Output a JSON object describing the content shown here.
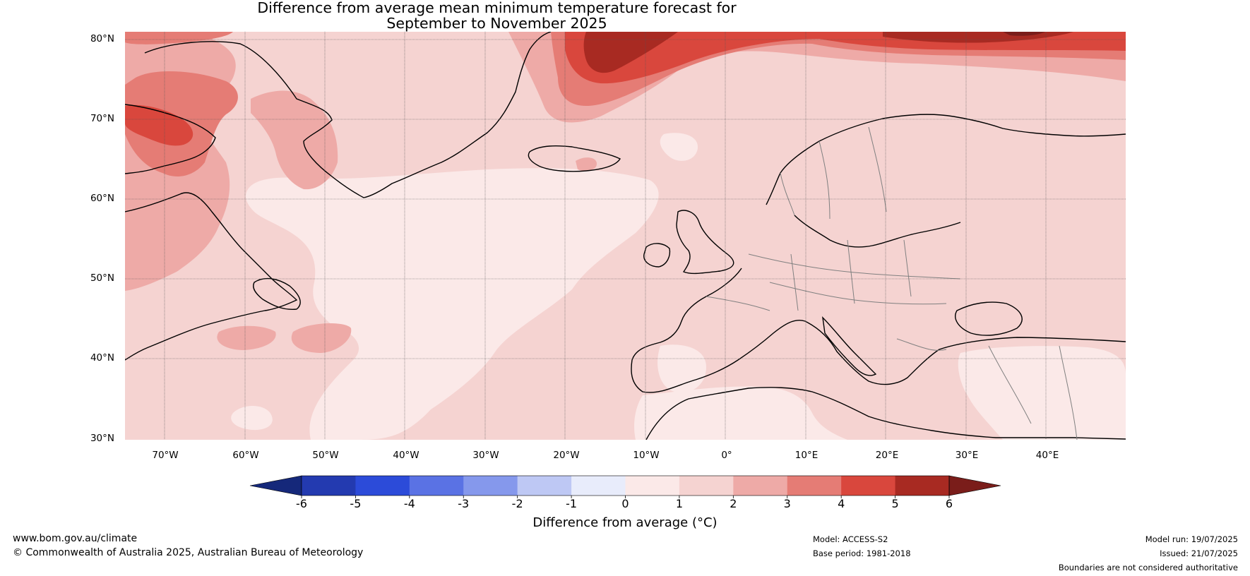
{
  "title": {
    "line1": "Difference from average mean minimum temperature forecast for",
    "line2": "September to November 2025"
  },
  "map": {
    "lat_labels": [
      "80°N",
      "70°N",
      "60°N",
      "50°N",
      "40°N",
      "30°N"
    ],
    "lon_labels": [
      "70°W",
      "60°W",
      "50°W",
      "40°W",
      "30°W",
      "20°W",
      "10°W",
      "0°",
      "10°E",
      "20°E",
      "30°E",
      "40°E"
    ]
  },
  "colorbar": {
    "label": "Difference from average (°C)",
    "ticks": [
      "-6",
      "-5",
      "-4",
      "-3",
      "-2",
      "-1",
      "0",
      "1",
      "2",
      "3",
      "4",
      "5",
      "6"
    ],
    "colors": [
      "#15287a",
      "#233ab0",
      "#2c4bd9",
      "#5a72e4",
      "#8598ec",
      "#bec8f4",
      "#e8ecfb",
      "#fbe9e8",
      "#f5d3d1",
      "#eeaaa7",
      "#e57c75",
      "#d9473d",
      "#a82a22",
      "#7a1d1a"
    ]
  },
  "footer": {
    "website": "www.bom.gov.au/climate",
    "copyright": "© Commonwealth of Australia 2025, Australian Bureau of Meteorology",
    "model": "Model: ACCESS-S2",
    "base_period": "Base period: 1981-2018",
    "model_run": "Model run: 19/07/2025",
    "issued": "Issued: 21/07/2025",
    "disclaimer": "Boundaries are not considered authoritative"
  }
}
